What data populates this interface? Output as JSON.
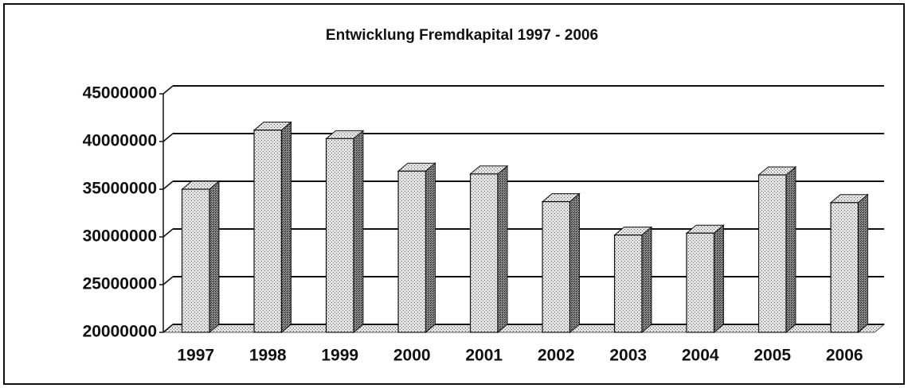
{
  "chart_data": {
    "type": "bar",
    "title": "Entwicklung Fremdkapital 1997 - 2006",
    "categories": [
      "1997",
      "1998",
      "1999",
      "2000",
      "2001",
      "2002",
      "2003",
      "2004",
      "2005",
      "2006"
    ],
    "values": [
      35000000,
      41200000,
      40300000,
      36900000,
      36600000,
      33700000,
      30200000,
      30400000,
      36500000,
      33600000
    ],
    "color": "#c8c8c8",
    "ylim": [
      20000000,
      45000000
    ],
    "yticks": [
      20000000,
      25000000,
      30000000,
      35000000,
      40000000,
      45000000
    ],
    "grid": true
  }
}
